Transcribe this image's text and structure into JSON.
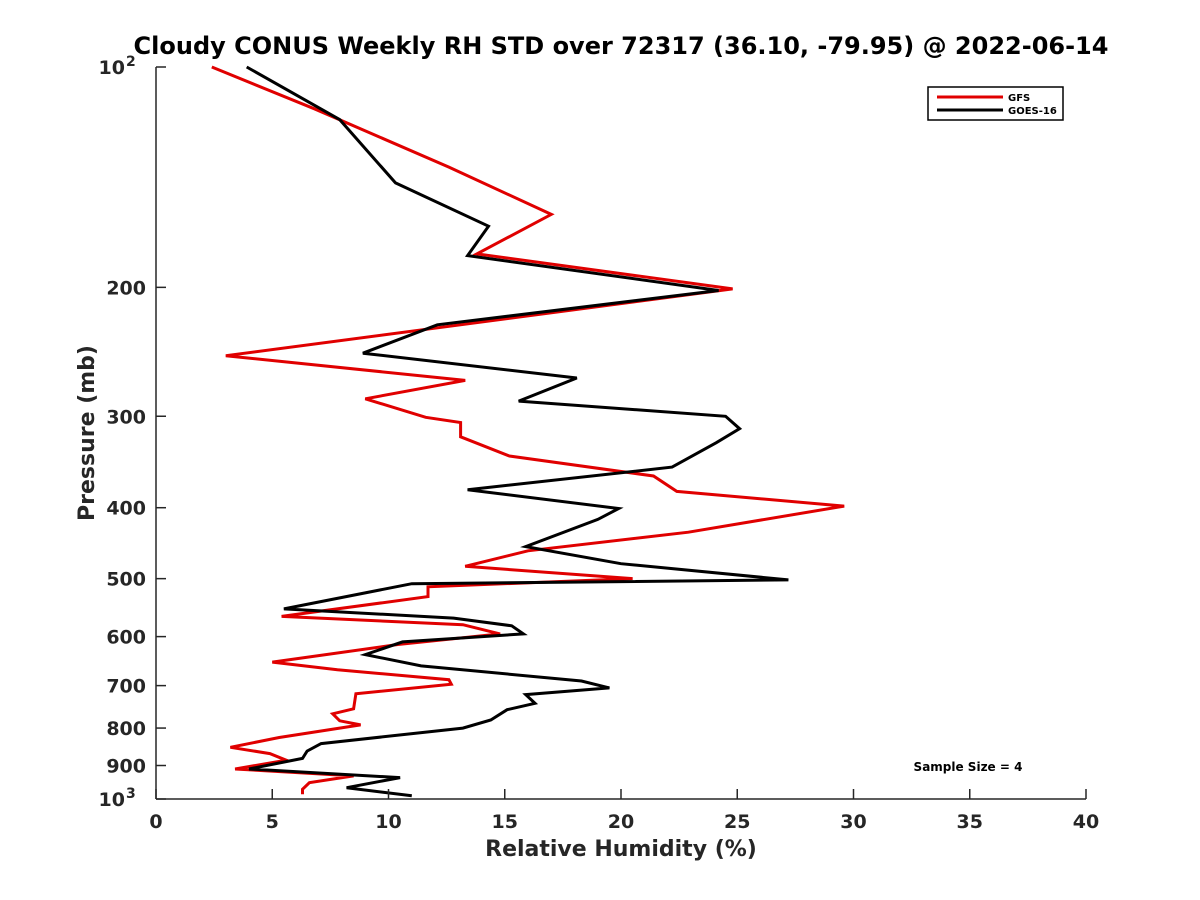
{
  "chart_data": {
    "type": "line",
    "title": "Cloudy CONUS Weekly RH STD over 72317 (36.10, -79.95) @ 2022-06-14",
    "xlabel": "Relative Humidity (%)",
    "ylabel": "Pressure (mb)",
    "xlim": [
      0,
      40
    ],
    "ylim": [
      100,
      1000
    ],
    "y_scale": "log",
    "y_reversed": true,
    "x_ticks": [
      0,
      5,
      10,
      15,
      20,
      25,
      30,
      35,
      40
    ],
    "y_ticks": [
      {
        "value": 100,
        "label": "10",
        "sup": "2"
      },
      {
        "value": 200,
        "label": "200",
        "sup": ""
      },
      {
        "value": 300,
        "label": "300",
        "sup": ""
      },
      {
        "value": 400,
        "label": "400",
        "sup": ""
      },
      {
        "value": 500,
        "label": "500",
        "sup": ""
      },
      {
        "value": 600,
        "label": "600",
        "sup": ""
      },
      {
        "value": 700,
        "label": "700",
        "sup": ""
      },
      {
        "value": 800,
        "label": "800",
        "sup": ""
      },
      {
        "value": 900,
        "label": "900",
        "sup": ""
      },
      {
        "value": 1000,
        "label": "10",
        "sup": "3"
      }
    ],
    "grid": false,
    "legend_position": "top-right",
    "annotation": "Sample Size = 4",
    "series": [
      {
        "name": "GFS",
        "color": "#e00000",
        "points": [
          [
            2.4,
            100
          ],
          [
            6.8,
            114
          ],
          [
            12.6,
            137
          ],
          [
            17.0,
            159
          ],
          [
            13.8,
            180
          ],
          [
            24.8,
            201
          ],
          [
            3.0,
            248
          ],
          [
            13.3,
            268
          ],
          [
            9.0,
            284
          ],
          [
            11.6,
            301
          ],
          [
            13.1,
            306
          ],
          [
            13.1,
            320
          ],
          [
            15.2,
            340
          ],
          [
            21.4,
            362
          ],
          [
            22.4,
            380
          ],
          [
            29.6,
            398
          ],
          [
            22.9,
            432
          ],
          [
            16.0,
            458
          ],
          [
            13.3,
            481
          ],
          [
            20.5,
            500
          ],
          [
            11.7,
            513
          ],
          [
            11.7,
            529
          ],
          [
            5.4,
            563
          ],
          [
            13.2,
            578
          ],
          [
            14.8,
            595
          ],
          [
            10.4,
            615
          ],
          [
            5.0,
            650
          ],
          [
            7.8,
            666
          ],
          [
            12.6,
            687
          ],
          [
            12.7,
            697
          ],
          [
            8.6,
            718
          ],
          [
            8.5,
            753
          ],
          [
            7.6,
            765
          ],
          [
            7.9,
            782
          ],
          [
            8.8,
            792
          ],
          [
            5.3,
            824
          ],
          [
            3.2,
            850
          ],
          [
            4.9,
            867
          ],
          [
            5.6,
            885
          ],
          [
            3.4,
            910
          ],
          [
            8.5,
            930
          ],
          [
            6.6,
            950
          ],
          [
            6.3,
            970
          ],
          [
            6.3,
            985
          ]
        ]
      },
      {
        "name": "GOES-16",
        "color": "#000000",
        "points": [
          [
            3.9,
            100
          ],
          [
            7.9,
            118
          ],
          [
            10.3,
            144
          ],
          [
            14.3,
            165
          ],
          [
            13.4,
            181
          ],
          [
            24.2,
            202
          ],
          [
            12.1,
            225
          ],
          [
            8.9,
            246
          ],
          [
            18.1,
            266
          ],
          [
            15.6,
            286
          ],
          [
            24.5,
            300
          ],
          [
            25.1,
            312
          ],
          [
            24.1,
            326
          ],
          [
            22.2,
            352
          ],
          [
            13.4,
            378
          ],
          [
            19.9,
            401
          ],
          [
            19.0,
            415
          ],
          [
            15.9,
            452
          ],
          [
            20.0,
            477
          ],
          [
            27.2,
            502
          ],
          [
            11.0,
            508
          ],
          [
            5.5,
            550
          ],
          [
            12.8,
            566
          ],
          [
            15.3,
            580
          ],
          [
            15.8,
            595
          ],
          [
            10.6,
            610
          ],
          [
            9.0,
            635
          ],
          [
            11.4,
            658
          ],
          [
            18.3,
            690
          ],
          [
            19.5,
            705
          ],
          [
            15.9,
            720
          ],
          [
            16.3,
            740
          ],
          [
            15.1,
            755
          ],
          [
            14.4,
            780
          ],
          [
            13.2,
            800
          ],
          [
            7.1,
            840
          ],
          [
            6.5,
            860
          ],
          [
            6.3,
            880
          ],
          [
            4.0,
            910
          ],
          [
            10.5,
            935
          ],
          [
            8.2,
            965
          ],
          [
            11.0,
            990
          ]
        ]
      }
    ]
  }
}
